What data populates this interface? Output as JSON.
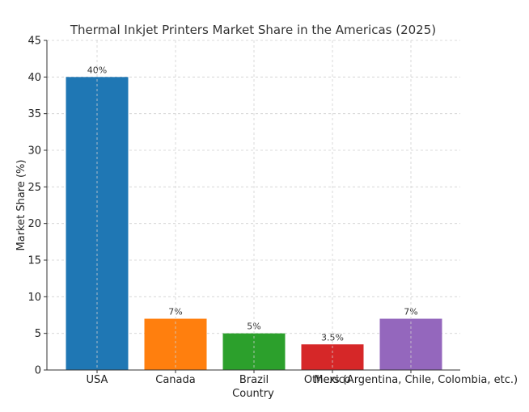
{
  "chart_data": {
    "type": "bar",
    "title": "Thermal Inkjet Printers Market Share in the Americas (2025)",
    "xlabel": "Country",
    "ylabel": "Market Share (%)",
    "categories": [
      "USA",
      "Canada",
      "Brazil",
      "Mexico",
      "Others (Argentina, Chile, Colombia, etc.)"
    ],
    "values": [
      40,
      7,
      5,
      3.5,
      7
    ],
    "value_labels": [
      "40%",
      "7%",
      "5%",
      "3.5%",
      "7%"
    ],
    "colors": [
      "#1f77b4",
      "#ff7f0e",
      "#2ca02c",
      "#d62728",
      "#9467bd"
    ],
    "ylim": [
      0,
      45
    ],
    "yticks": [
      0,
      5,
      10,
      15,
      20,
      25,
      30,
      35,
      40,
      45
    ],
    "grid": true
  }
}
